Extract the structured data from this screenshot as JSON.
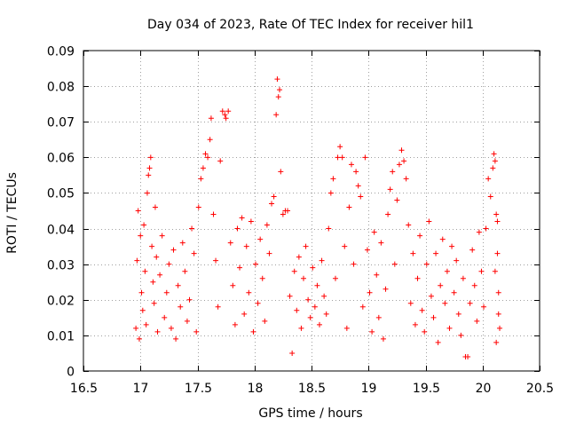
{
  "chart_data": {
    "type": "scatter",
    "title": "Day 034 of 2023, Rate Of TEC Index for receiver hil1",
    "xlabel": "GPS time / hours",
    "ylabel": "ROTI / TECUs",
    "xlim": [
      16.5,
      20.5
    ],
    "ylim": [
      0,
      0.09
    ],
    "x_ticks": [
      "16.5",
      "17",
      "17.5",
      "18",
      "18.5",
      "19",
      "19.5",
      "20",
      "20.5"
    ],
    "y_ticks": [
      "0",
      "0.01",
      "0.02",
      "0.03",
      "0.04",
      "0.05",
      "0.06",
      "0.07",
      "0.08",
      "0.09"
    ],
    "grid": true,
    "marker": "+",
    "series": [
      {
        "name": "ROTI",
        "color": "#ff0000",
        "points": [
          [
            16.96,
            0.012
          ],
          [
            16.97,
            0.031
          ],
          [
            16.98,
            0.045
          ],
          [
            16.99,
            0.009
          ],
          [
            17.0,
            0.038
          ],
          [
            17.01,
            0.022
          ],
          [
            17.02,
            0.017
          ],
          [
            17.03,
            0.041
          ],
          [
            17.04,
            0.028
          ],
          [
            17.05,
            0.013
          ],
          [
            17.06,
            0.05
          ],
          [
            17.07,
            0.055
          ],
          [
            17.08,
            0.057
          ],
          [
            17.09,
            0.06
          ],
          [
            17.1,
            0.035
          ],
          [
            17.11,
            0.025
          ],
          [
            17.12,
            0.019
          ],
          [
            17.13,
            0.046
          ],
          [
            17.14,
            0.032
          ],
          [
            17.15,
            0.011
          ],
          [
            17.17,
            0.027
          ],
          [
            17.19,
            0.038
          ],
          [
            17.21,
            0.015
          ],
          [
            17.23,
            0.022
          ],
          [
            17.25,
            0.03
          ],
          [
            17.27,
            0.012
          ],
          [
            17.29,
            0.034
          ],
          [
            17.31,
            0.009
          ],
          [
            17.33,
            0.024
          ],
          [
            17.35,
            0.018
          ],
          [
            17.37,
            0.036
          ],
          [
            17.39,
            0.028
          ],
          [
            17.41,
            0.014
          ],
          [
            17.43,
            0.02
          ],
          [
            17.45,
            0.04
          ],
          [
            17.47,
            0.033
          ],
          [
            17.49,
            0.011
          ],
          [
            17.51,
            0.046
          ],
          [
            17.53,
            0.054
          ],
          [
            17.55,
            0.057
          ],
          [
            17.57,
            0.061
          ],
          [
            17.59,
            0.06
          ],
          [
            17.61,
            0.065
          ],
          [
            17.62,
            0.071
          ],
          [
            17.64,
            0.044
          ],
          [
            17.66,
            0.031
          ],
          [
            17.68,
            0.018
          ],
          [
            17.7,
            0.059
          ],
          [
            17.72,
            0.073
          ],
          [
            17.74,
            0.072
          ],
          [
            17.75,
            0.071
          ],
          [
            17.77,
            0.073
          ],
          [
            17.79,
            0.036
          ],
          [
            17.81,
            0.024
          ],
          [
            17.83,
            0.013
          ],
          [
            17.85,
            0.04
          ],
          [
            17.87,
            0.029
          ],
          [
            17.89,
            0.043
          ],
          [
            17.91,
            0.016
          ],
          [
            17.93,
            0.035
          ],
          [
            17.95,
            0.022
          ],
          [
            17.97,
            0.042
          ],
          [
            17.99,
            0.011
          ],
          [
            18.01,
            0.03
          ],
          [
            18.03,
            0.019
          ],
          [
            18.05,
            0.037
          ],
          [
            18.07,
            0.026
          ],
          [
            18.09,
            0.014
          ],
          [
            18.11,
            0.041
          ],
          [
            18.13,
            0.033
          ],
          [
            18.15,
            0.047
          ],
          [
            18.17,
            0.049
          ],
          [
            18.19,
            0.072
          ],
          [
            18.2,
            0.082
          ],
          [
            18.21,
            0.077
          ],
          [
            18.22,
            0.079
          ],
          [
            18.23,
            0.056
          ],
          [
            18.25,
            0.044
          ],
          [
            18.27,
            0.045
          ],
          [
            18.29,
            0.045
          ],
          [
            18.31,
            0.021
          ],
          [
            18.33,
            0.005
          ],
          [
            18.35,
            0.028
          ],
          [
            18.37,
            0.017
          ],
          [
            18.39,
            0.032
          ],
          [
            18.41,
            0.012
          ],
          [
            18.43,
            0.026
          ],
          [
            18.45,
            0.035
          ],
          [
            18.47,
            0.02
          ],
          [
            18.49,
            0.015
          ],
          [
            18.51,
            0.029
          ],
          [
            18.53,
            0.018
          ],
          [
            18.55,
            0.024
          ],
          [
            18.57,
            0.013
          ],
          [
            18.59,
            0.031
          ],
          [
            18.61,
            0.021
          ],
          [
            18.63,
            0.016
          ],
          [
            18.65,
            0.04
          ],
          [
            18.67,
            0.05
          ],
          [
            18.69,
            0.054
          ],
          [
            18.71,
            0.026
          ],
          [
            18.73,
            0.06
          ],
          [
            18.75,
            0.063
          ],
          [
            18.77,
            0.06
          ],
          [
            18.79,
            0.035
          ],
          [
            18.81,
            0.012
          ],
          [
            18.83,
            0.046
          ],
          [
            18.85,
            0.058
          ],
          [
            18.87,
            0.03
          ],
          [
            18.89,
            0.056
          ],
          [
            18.91,
            0.052
          ],
          [
            18.93,
            0.049
          ],
          [
            18.95,
            0.018
          ],
          [
            18.97,
            0.06
          ],
          [
            18.99,
            0.034
          ],
          [
            19.01,
            0.022
          ],
          [
            19.03,
            0.011
          ],
          [
            19.05,
            0.039
          ],
          [
            19.07,
            0.027
          ],
          [
            19.09,
            0.015
          ],
          [
            19.11,
            0.036
          ],
          [
            19.13,
            0.009
          ],
          [
            19.15,
            0.023
          ],
          [
            19.17,
            0.044
          ],
          [
            19.19,
            0.051
          ],
          [
            19.21,
            0.056
          ],
          [
            19.23,
            0.03
          ],
          [
            19.25,
            0.048
          ],
          [
            19.27,
            0.058
          ],
          [
            19.29,
            0.062
          ],
          [
            19.31,
            0.059
          ],
          [
            19.33,
            0.054
          ],
          [
            19.35,
            0.041
          ],
          [
            19.37,
            0.019
          ],
          [
            19.39,
            0.033
          ],
          [
            19.41,
            0.013
          ],
          [
            19.43,
            0.026
          ],
          [
            19.45,
            0.038
          ],
          [
            19.47,
            0.017
          ],
          [
            19.49,
            0.011
          ],
          [
            19.51,
            0.03
          ],
          [
            19.53,
            0.042
          ],
          [
            19.55,
            0.021
          ],
          [
            19.57,
            0.015
          ],
          [
            19.59,
            0.033
          ],
          [
            19.61,
            0.008
          ],
          [
            19.63,
            0.024
          ],
          [
            19.65,
            0.037
          ],
          [
            19.67,
            0.019
          ],
          [
            19.69,
            0.028
          ],
          [
            19.71,
            0.012
          ],
          [
            19.73,
            0.035
          ],
          [
            19.75,
            0.022
          ],
          [
            19.77,
            0.031
          ],
          [
            19.79,
            0.016
          ],
          [
            19.81,
            0.01
          ],
          [
            19.83,
            0.026
          ],
          [
            19.85,
            0.004
          ],
          [
            19.87,
            0.004
          ],
          [
            19.89,
            0.019
          ],
          [
            19.91,
            0.034
          ],
          [
            19.93,
            0.024
          ],
          [
            19.95,
            0.014
          ],
          [
            19.97,
            0.039
          ],
          [
            19.99,
            0.028
          ],
          [
            20.01,
            0.018
          ],
          [
            20.03,
            0.04
          ],
          [
            20.05,
            0.054
          ],
          [
            20.07,
            0.049
          ],
          [
            20.09,
            0.057
          ],
          [
            20.1,
            0.061
          ],
          [
            20.11,
            0.059
          ],
          [
            20.12,
            0.044
          ],
          [
            20.13,
            0.033
          ],
          [
            20.14,
            0.022
          ],
          [
            20.15,
            0.012
          ],
          [
            20.12,
            0.008
          ],
          [
            20.11,
            0.028
          ],
          [
            20.14,
            0.016
          ],
          [
            20.13,
            0.042
          ]
        ]
      }
    ]
  }
}
